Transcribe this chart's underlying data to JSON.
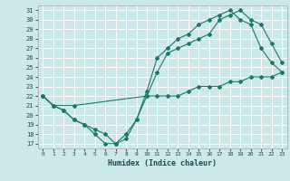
{
  "xlabel": "Humidex (Indice chaleur)",
  "bg_color": "#cce8e8",
  "grid_color": "#ffffff",
  "line_color": "#1a7a6a",
  "xlim": [
    -0.5,
    23.5
  ],
  "ylim": [
    16.5,
    31.5
  ],
  "xticks": [
    0,
    1,
    2,
    3,
    4,
    5,
    6,
    7,
    8,
    9,
    10,
    11,
    12,
    13,
    14,
    15,
    16,
    17,
    18,
    19,
    20,
    21,
    22,
    23
  ],
  "yticks": [
    17,
    18,
    19,
    20,
    21,
    22,
    23,
    24,
    25,
    26,
    27,
    28,
    29,
    30,
    31
  ],
  "line1_x": [
    0,
    1,
    2,
    3,
    4,
    5,
    6,
    7,
    8,
    9,
    10,
    11,
    12,
    13,
    14,
    15,
    16,
    17,
    18,
    19,
    20,
    21,
    22,
    23
  ],
  "line1_y": [
    22,
    21,
    20.5,
    19.5,
    19,
    18,
    17,
    17,
    17.5,
    19.5,
    22,
    22,
    22,
    22,
    22.5,
    23,
    23,
    23,
    23.5,
    23.5,
    24,
    24,
    24,
    24.5
  ],
  "line2_x": [
    0,
    1,
    3,
    10,
    11,
    12,
    13,
    14,
    15,
    16,
    17,
    18,
    19,
    20,
    21,
    22,
    23
  ],
  "line2_y": [
    22,
    21,
    21,
    22,
    24.5,
    26.5,
    27,
    27.5,
    28,
    28.5,
    30,
    30.5,
    31,
    30,
    29.5,
    27.5,
    25.5
  ],
  "line3_x": [
    0,
    1,
    2,
    3,
    4,
    5,
    6,
    7,
    8,
    9,
    10,
    11,
    12,
    13,
    14,
    15,
    16,
    17,
    18,
    19,
    20,
    21,
    22,
    23
  ],
  "line3_y": [
    22,
    21,
    20.5,
    19.5,
    19,
    18.5,
    18,
    17,
    18,
    19.5,
    22.5,
    26,
    27,
    28,
    28.5,
    29.5,
    30,
    30.5,
    31,
    30,
    29.5,
    27,
    25.5,
    24.5
  ]
}
